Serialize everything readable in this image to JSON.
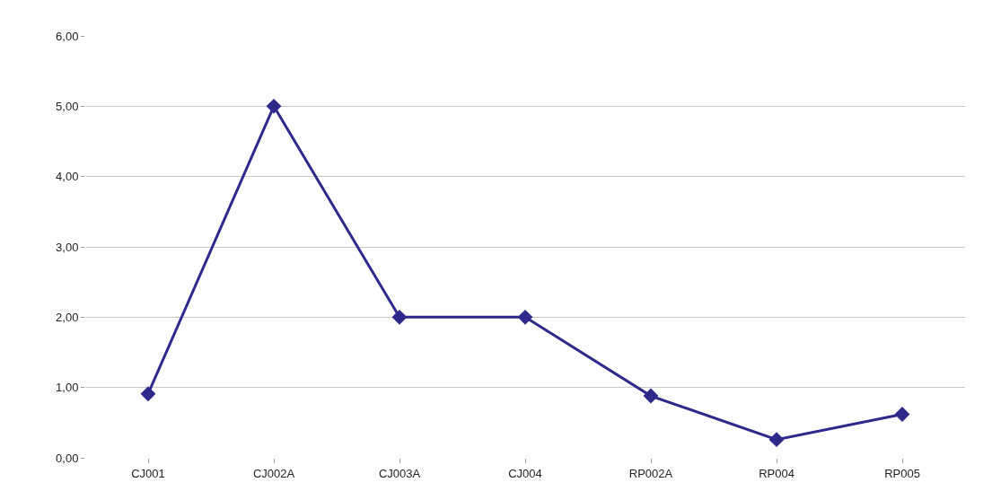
{
  "chart_data": {
    "type": "line",
    "categories": [
      "CJ001",
      "CJ002A",
      "CJ003A",
      "CJ004",
      "RP002A",
      "RP004",
      "RP005"
    ],
    "series": [
      {
        "color": "#2e2a8c",
        "values": [
          0.91,
          5.0,
          2.0,
          2.0,
          0.88,
          0.26,
          0.62
        ]
      }
    ],
    "ylim": [
      0,
      6
    ],
    "yticks": [
      {
        "value": 0,
        "label": "0,00"
      },
      {
        "value": 1,
        "label": "1,00"
      },
      {
        "value": 2,
        "label": "2,00"
      },
      {
        "value": 3,
        "label": "3,00"
      },
      {
        "value": 4,
        "label": "4,00"
      },
      {
        "value": 5,
        "label": "5,00"
      },
      {
        "value": 6,
        "label": "6,00"
      }
    ],
    "grid": "y",
    "marker": "diamond",
    "line_style": "solid",
    "legend": false
  }
}
